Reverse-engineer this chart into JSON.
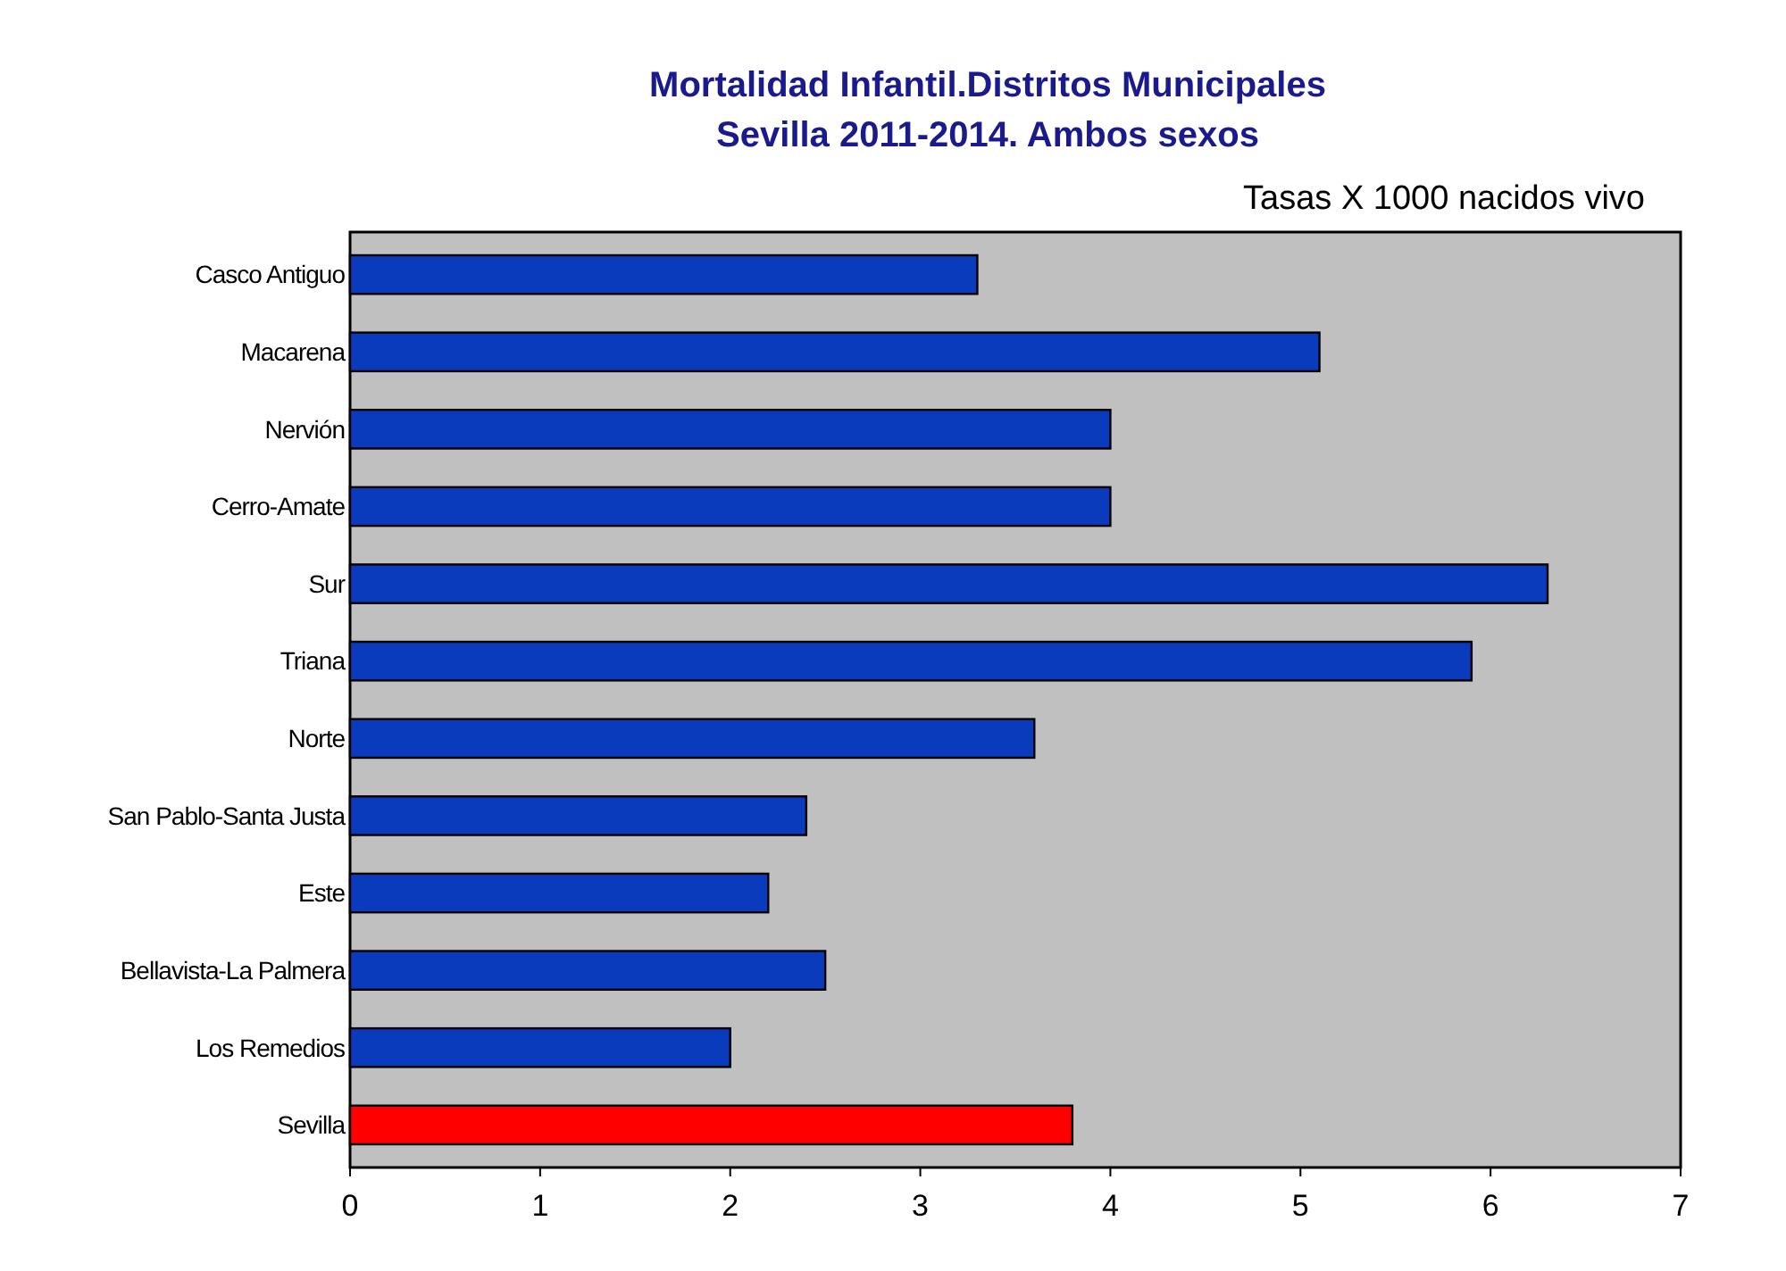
{
  "chart_data": {
    "type": "bar",
    "orientation": "horizontal",
    "title": "Mortalidad Infantil.Distritos Municipales",
    "subtitle": "Sevilla 2011-2014. Ambos sexos",
    "annotations": [
      "Tasas X 1000 nacidos vivo"
    ],
    "categories": [
      "Casco Antiguo",
      "Macarena",
      "Nervión",
      "Cerro-Amate",
      "Sur",
      "Triana",
      "Norte",
      "San Pablo-Santa Justa",
      "Este",
      "Bellavista-La Palmera",
      "Los Remedios",
      "Sevilla"
    ],
    "values": [
      3.3,
      5.1,
      4.0,
      4.0,
      6.3,
      5.9,
      3.6,
      2.4,
      2.2,
      2.5,
      2.0,
      3.8
    ],
    "colors": [
      "#0a3bbd",
      "#0a3bbd",
      "#0a3bbd",
      "#0a3bbd",
      "#0a3bbd",
      "#0a3bbd",
      "#0a3bbd",
      "#0a3bbd",
      "#0a3bbd",
      "#0a3bbd",
      "#0a3bbd",
      "#ff0000"
    ],
    "xlim": [
      0,
      7
    ],
    "xticks": [
      0,
      1,
      2,
      3,
      4,
      5,
      6,
      7
    ],
    "grid": false
  }
}
